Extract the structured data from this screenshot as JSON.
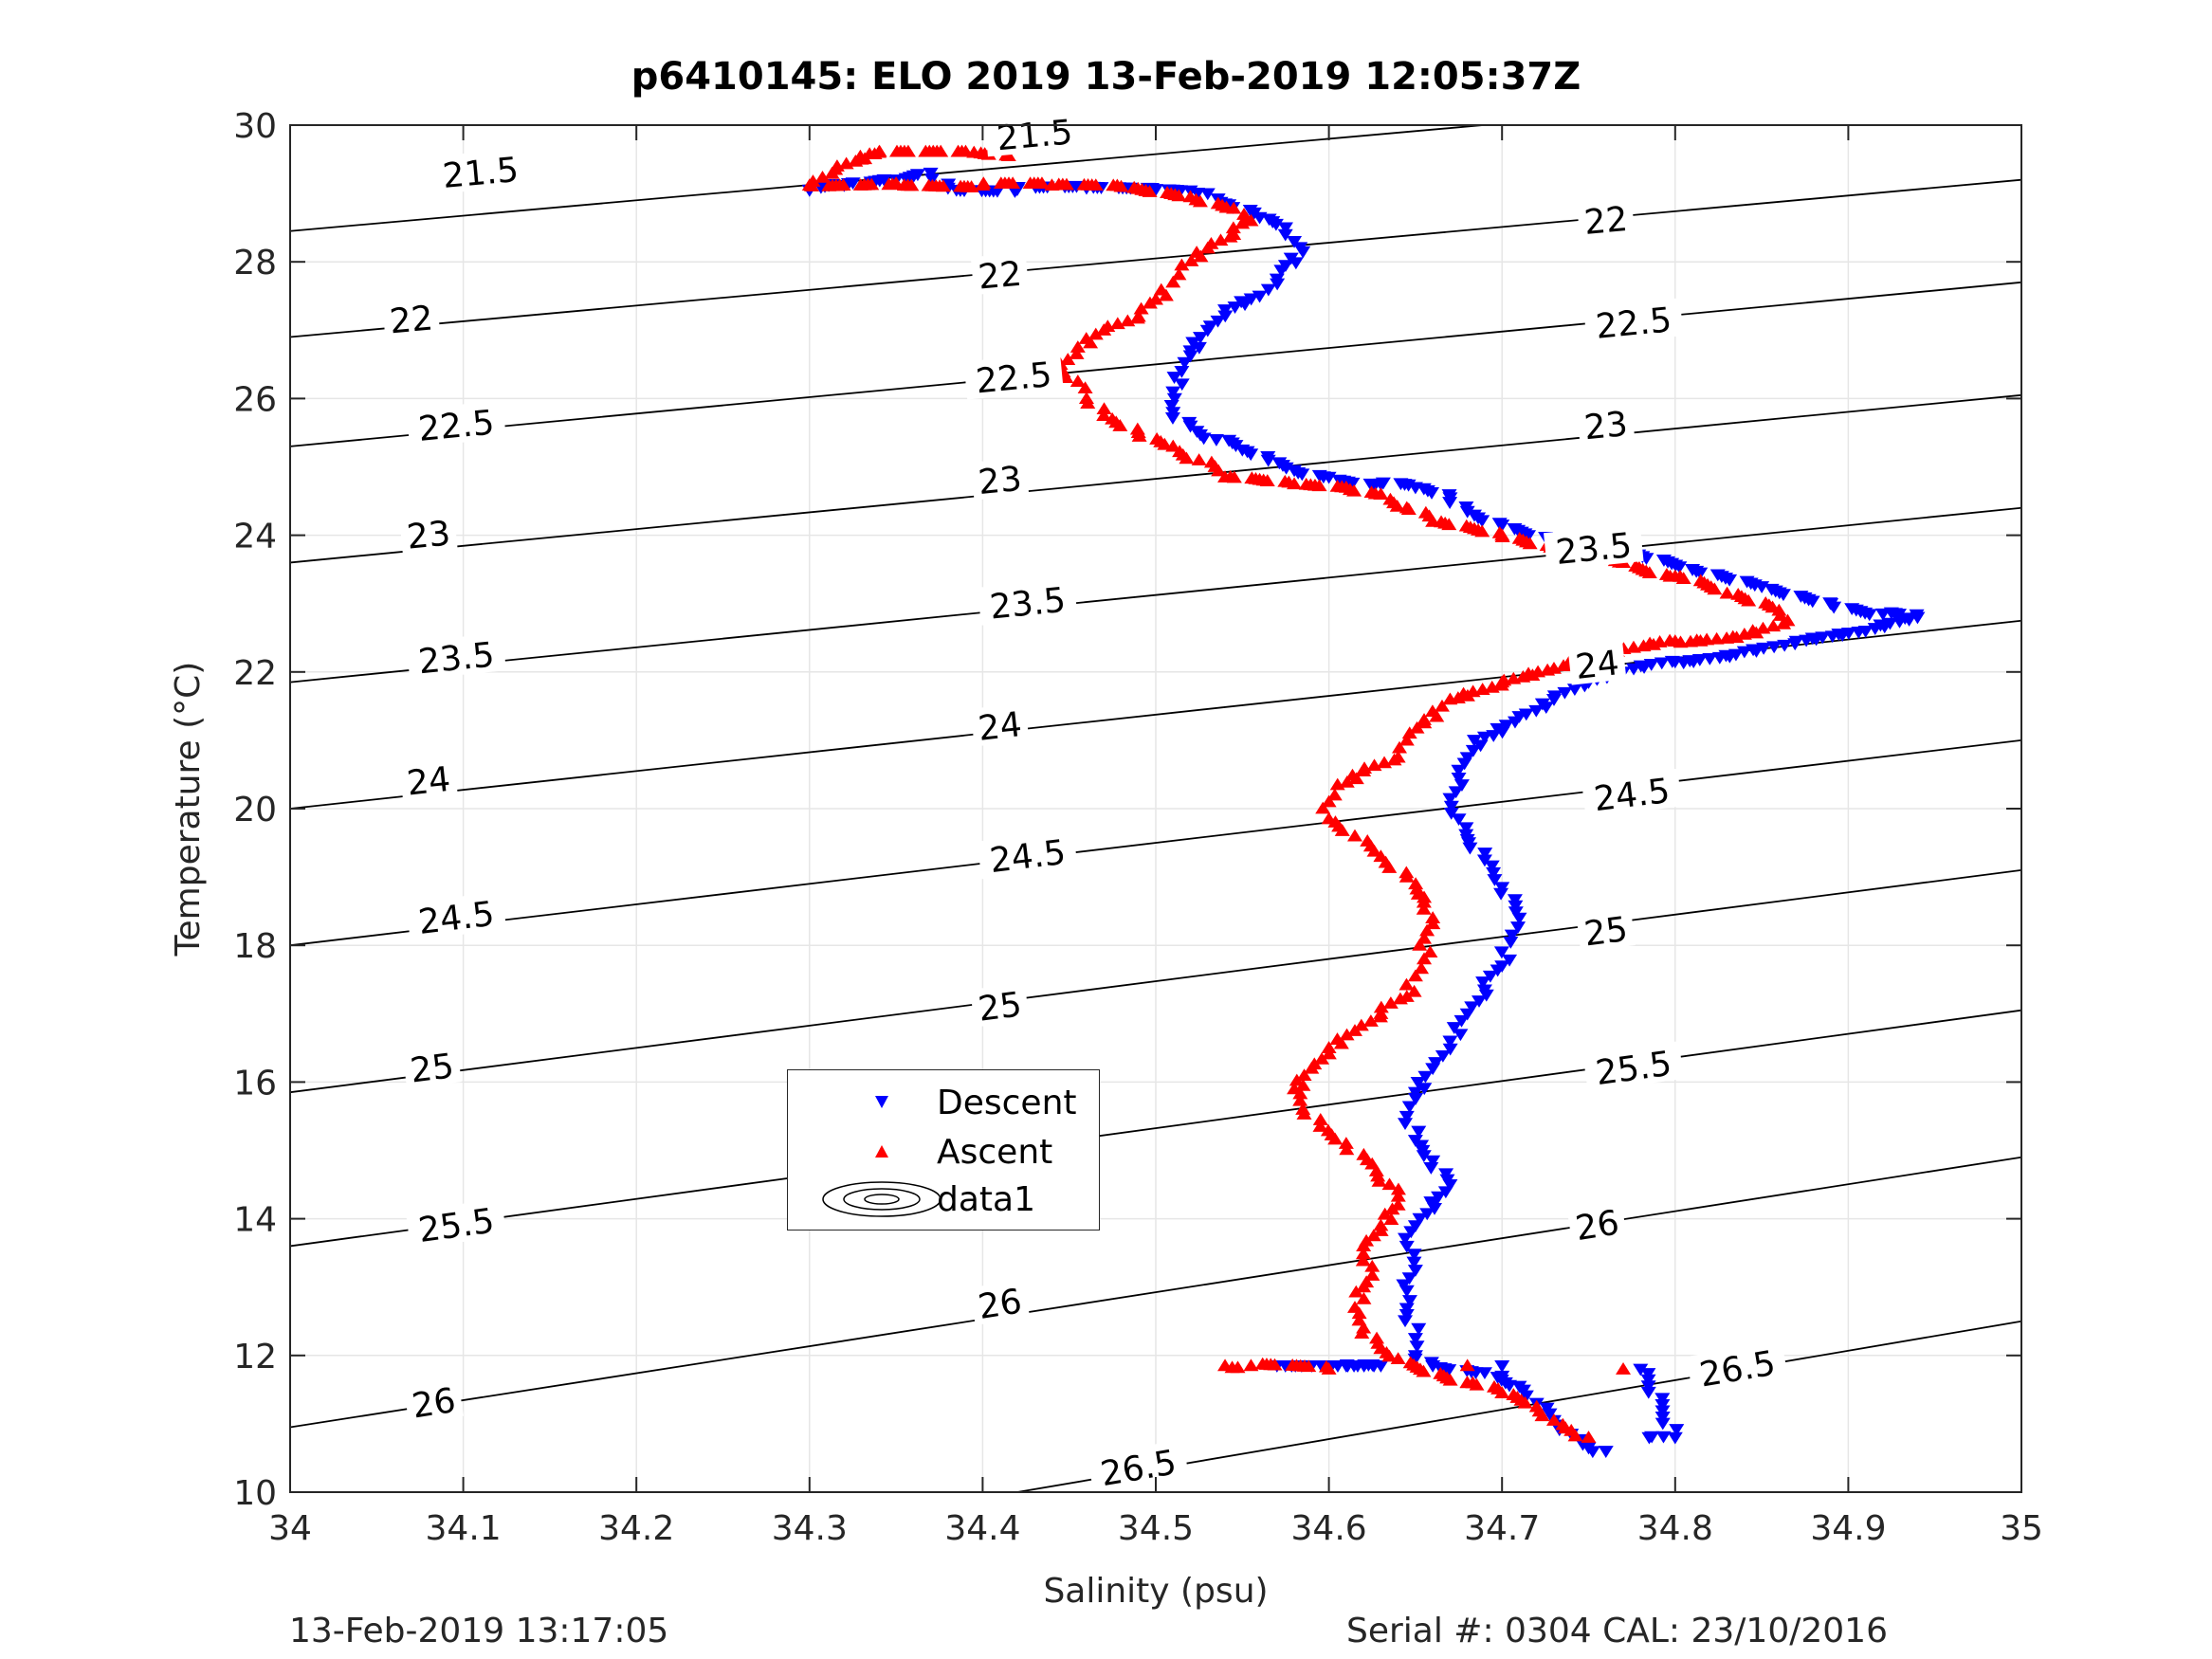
{
  "title": "p6410145: ELO 2019 13-Feb-2019 12:05:37Z",
  "footer": {
    "left": "13-Feb-2019 13:17:05",
    "right": "Serial #: 0304  CAL: 23/10/2016"
  },
  "legend": {
    "descent": "Descent",
    "ascent": "Ascent",
    "data1": "data1"
  },
  "colors": {
    "descent": "#0000ff",
    "ascent": "#ff0000",
    "contour": "#000000",
    "grid": "#e6e6e6",
    "axis": "#262626"
  },
  "chart_data": {
    "type": "scatter",
    "title": "p6410145: ELO 2019 13-Feb-2019 12:05:37Z",
    "xlabel": "Salinity (psu)",
    "ylabel": "Temperature (°C)",
    "xlim": [
      34,
      35
    ],
    "ylim": [
      10,
      30
    ],
    "xticks": [
      34,
      34.1,
      34.2,
      34.3,
      34.4,
      34.5,
      34.6,
      34.7,
      34.8,
      34.9,
      35
    ],
    "xtick_labels": [
      "34",
      "34.1",
      "34.2",
      "34.3",
      "34.4",
      "34.5",
      "34.6",
      "34.7",
      "34.8",
      "34.9",
      "35"
    ],
    "yticks": [
      10,
      12,
      14,
      16,
      18,
      20,
      22,
      24,
      26,
      28,
      30
    ],
    "ytick_labels": [
      "10",
      "12",
      "14",
      "16",
      "18",
      "20",
      "22",
      "24",
      "26",
      "28",
      "30"
    ],
    "grid": true,
    "legend_position": "inside-lower-left",
    "contours": [
      {
        "level": "21.5",
        "points": [
          [
            34,
            28.45
          ],
          [
            35,
            30.7
          ]
        ],
        "labels": [
          [
            34.11,
            29.3
          ],
          [
            34.43,
            29.85
          ]
        ]
      },
      {
        "level": "22",
        "points": [
          [
            34,
            26.9
          ],
          [
            35,
            29.2
          ]
        ],
        "labels": [
          [
            34.07,
            27.15
          ],
          [
            34.41,
            27.8
          ],
          [
            34.76,
            28.6
          ]
        ]
      },
      {
        "level": "22.5",
        "points": [
          [
            34,
            25.3
          ],
          [
            35,
            27.7
          ]
        ],
        "labels": [
          [
            34.096,
            25.6
          ],
          [
            34.418,
            26.3
          ],
          [
            34.776,
            27.1
          ]
        ]
      },
      {
        "level": "23",
        "points": [
          [
            34,
            23.6
          ],
          [
            35,
            26.05
          ]
        ],
        "labels": [
          [
            34.08,
            24.0
          ],
          [
            34.41,
            24.8
          ],
          [
            34.76,
            25.6
          ]
        ]
      },
      {
        "level": "23.5",
        "points": [
          [
            34,
            21.85
          ],
          [
            35,
            24.4
          ]
        ],
        "labels": [
          [
            34.096,
            22.2
          ],
          [
            34.426,
            23.0
          ],
          [
            34.753,
            23.8
          ]
        ]
      },
      {
        "level": "24",
        "points": [
          [
            34,
            20.0
          ],
          [
            35,
            22.75
          ]
        ],
        "labels": [
          [
            34.08,
            20.4
          ],
          [
            34.41,
            21.2
          ],
          [
            34.755,
            22.1
          ]
        ]
      },
      {
        "level": "24.5",
        "points": [
          [
            34,
            18.0
          ],
          [
            35,
            21.0
          ]
        ],
        "labels": [
          [
            34.096,
            18.4
          ],
          [
            34.426,
            19.3
          ],
          [
            34.775,
            20.2
          ]
        ]
      },
      {
        "level": "25",
        "points": [
          [
            34,
            15.85
          ],
          [
            35,
            19.1
          ]
        ],
        "labels": [
          [
            34.082,
            16.2
          ],
          [
            34.41,
            17.1
          ],
          [
            34.76,
            18.2
          ]
        ]
      },
      {
        "level": "25.5",
        "points": [
          [
            34,
            13.6
          ],
          [
            35,
            17.05
          ]
        ],
        "labels": [
          [
            34.096,
            13.9
          ],
          [
            34.425,
            15.0
          ],
          [
            34.776,
            16.2
          ]
        ]
      },
      {
        "level": "26",
        "points": [
          [
            34,
            10.95
          ],
          [
            35,
            14.9
          ]
        ],
        "labels": [
          [
            34.083,
            11.3
          ],
          [
            34.41,
            12.75
          ],
          [
            34.755,
            13.9
          ]
        ]
      },
      {
        "level": "26.5",
        "points": [
          [
            34.42,
            10.0
          ],
          [
            35,
            12.5
          ]
        ],
        "labels": [
          [
            34.49,
            10.35
          ],
          [
            34.836,
            11.8
          ]
        ]
      }
    ],
    "series": [
      {
        "name": "Descent",
        "marker": "triangle-down",
        "color": "#0000ff",
        "points": [
          [
            34.3,
            29.05
          ],
          [
            34.32,
            29.12
          ],
          [
            34.35,
            29.2
          ],
          [
            34.37,
            29.3
          ],
          [
            34.38,
            29.08
          ],
          [
            34.42,
            29.06
          ],
          [
            34.46,
            29.08
          ],
          [
            34.5,
            29.06
          ],
          [
            34.52,
            29.04
          ],
          [
            34.53,
            29.0
          ],
          [
            34.54,
            28.85
          ],
          [
            34.56,
            28.65
          ],
          [
            34.575,
            28.5
          ],
          [
            34.58,
            28.3
          ],
          [
            34.585,
            28.15
          ],
          [
            34.575,
            27.95
          ],
          [
            34.57,
            27.75
          ],
          [
            34.56,
            27.5
          ],
          [
            34.54,
            27.3
          ],
          [
            34.53,
            27.0
          ],
          [
            34.52,
            26.7
          ],
          [
            34.515,
            26.4
          ],
          [
            34.51,
            26.1
          ],
          [
            34.51,
            25.8
          ],
          [
            34.52,
            25.6
          ],
          [
            34.535,
            25.4
          ],
          [
            34.55,
            25.25
          ],
          [
            34.565,
            25.1
          ],
          [
            34.58,
            24.95
          ],
          [
            34.6,
            24.85
          ],
          [
            34.63,
            24.75
          ],
          [
            34.65,
            24.7
          ],
          [
            34.67,
            24.55
          ],
          [
            34.68,
            24.35
          ],
          [
            34.7,
            24.15
          ],
          [
            34.73,
            23.95
          ],
          [
            34.77,
            23.75
          ],
          [
            34.81,
            23.5
          ],
          [
            34.85,
            23.25
          ],
          [
            34.89,
            23.0
          ],
          [
            34.92,
            22.85
          ],
          [
            34.94,
            22.8
          ],
          [
            34.91,
            22.6
          ],
          [
            34.87,
            22.45
          ],
          [
            34.84,
            22.3
          ],
          [
            34.8,
            22.15
          ],
          [
            34.77,
            22.0
          ],
          [
            34.75,
            21.85
          ],
          [
            34.73,
            21.6
          ],
          [
            34.71,
            21.35
          ],
          [
            34.69,
            21.05
          ],
          [
            34.68,
            20.75
          ],
          [
            34.675,
            20.45
          ],
          [
            34.67,
            20.15
          ],
          [
            34.675,
            19.85
          ],
          [
            34.68,
            19.55
          ],
          [
            34.69,
            19.25
          ],
          [
            34.7,
            18.85
          ],
          [
            34.71,
            18.4
          ],
          [
            34.705,
            18.05
          ],
          [
            34.7,
            17.7
          ],
          [
            34.69,
            17.35
          ],
          [
            34.68,
            17.0
          ],
          [
            34.67,
            16.6
          ],
          [
            34.66,
            16.2
          ],
          [
            34.65,
            15.85
          ],
          [
            34.645,
            15.5
          ],
          [
            34.65,
            15.15
          ],
          [
            34.66,
            14.85
          ],
          [
            34.67,
            14.5
          ],
          [
            34.66,
            14.2
          ],
          [
            34.65,
            13.9
          ],
          [
            34.645,
            13.6
          ],
          [
            34.65,
            13.25
          ],
          [
            34.645,
            12.95
          ],
          [
            34.645,
            12.6
          ],
          [
            34.65,
            12.25
          ],
          [
            34.65,
            12.0
          ],
          [
            34.66,
            11.85
          ],
          [
            34.69,
            11.75
          ],
          [
            34.71,
            11.55
          ],
          [
            34.72,
            11.3
          ],
          [
            34.73,
            11.05
          ],
          [
            34.74,
            10.85
          ],
          [
            34.75,
            10.65
          ],
          [
            34.76,
            10.6
          ],
          [
            34.61,
            11.85
          ],
          [
            34.63,
            11.85
          ],
          [
            34.57,
            11.85
          ],
          [
            34.7,
            11.85
          ],
          [
            34.78,
            11.8
          ],
          [
            34.8,
            10.8
          ],
          [
            34.785,
            10.8
          ],
          [
            34.7,
            11.7
          ]
        ]
      },
      {
        "name": "Ascent",
        "marker": "triangle-up",
        "color": "#ff0000",
        "points": [
          [
            34.33,
            29.5
          ],
          [
            34.34,
            29.6
          ],
          [
            34.315,
            29.35
          ],
          [
            34.3,
            29.12
          ],
          [
            34.35,
            29.15
          ],
          [
            34.4,
            29.12
          ],
          [
            34.44,
            29.12
          ],
          [
            34.48,
            29.1
          ],
          [
            34.52,
            28.95
          ],
          [
            34.545,
            28.78
          ],
          [
            34.555,
            28.6
          ],
          [
            34.545,
            28.4
          ],
          [
            34.53,
            28.2
          ],
          [
            34.515,
            27.95
          ],
          [
            34.51,
            27.7
          ],
          [
            34.5,
            27.45
          ],
          [
            34.49,
            27.2
          ],
          [
            34.47,
            27.0
          ],
          [
            34.455,
            26.75
          ],
          [
            34.445,
            26.5
          ],
          [
            34.455,
            26.25
          ],
          [
            34.46,
            26.0
          ],
          [
            34.47,
            25.75
          ],
          [
            34.49,
            25.5
          ],
          [
            34.51,
            25.3
          ],
          [
            34.525,
            25.1
          ],
          [
            34.54,
            24.85
          ],
          [
            34.58,
            24.75
          ],
          [
            34.61,
            24.7
          ],
          [
            34.63,
            24.6
          ],
          [
            34.645,
            24.4
          ],
          [
            34.66,
            24.2
          ],
          [
            34.7,
            24.0
          ],
          [
            34.73,
            23.8
          ],
          [
            34.77,
            23.6
          ],
          [
            34.8,
            23.4
          ],
          [
            34.83,
            23.15
          ],
          [
            34.86,
            22.9
          ],
          [
            34.865,
            22.75
          ],
          [
            34.84,
            22.55
          ],
          [
            34.8,
            22.45
          ],
          [
            34.76,
            22.25
          ],
          [
            34.73,
            22.05
          ],
          [
            34.7,
            21.85
          ],
          [
            34.67,
            21.6
          ],
          [
            34.655,
            21.3
          ],
          [
            34.645,
            21.0
          ],
          [
            34.64,
            20.75
          ],
          [
            34.62,
            20.55
          ],
          [
            34.605,
            20.35
          ],
          [
            34.6,
            20.1
          ],
          [
            34.6,
            19.85
          ],
          [
            34.615,
            19.6
          ],
          [
            34.63,
            19.3
          ],
          [
            34.645,
            19.0
          ],
          [
            34.655,
            18.7
          ],
          [
            34.66,
            18.4
          ],
          [
            34.655,
            18.1
          ],
          [
            34.655,
            17.8
          ],
          [
            34.65,
            17.55
          ],
          [
            34.645,
            17.25
          ],
          [
            34.63,
            17.0
          ],
          [
            34.615,
            16.75
          ],
          [
            34.6,
            16.5
          ],
          [
            34.59,
            16.2
          ],
          [
            34.58,
            15.9
          ],
          [
            34.585,
            15.6
          ],
          [
            34.595,
            15.35
          ],
          [
            34.61,
            15.1
          ],
          [
            34.625,
            14.8
          ],
          [
            34.635,
            14.5
          ],
          [
            34.64,
            14.2
          ],
          [
            34.63,
            13.9
          ],
          [
            34.62,
            13.6
          ],
          [
            34.625,
            13.3
          ],
          [
            34.62,
            13.0
          ],
          [
            34.615,
            12.7
          ],
          [
            34.62,
            12.4
          ],
          [
            34.63,
            12.1
          ],
          [
            34.64,
            11.95
          ],
          [
            34.68,
            11.6
          ],
          [
            34.7,
            11.45
          ],
          [
            34.72,
            11.25
          ],
          [
            34.73,
            11.05
          ],
          [
            34.74,
            10.9
          ],
          [
            34.75,
            10.8
          ],
          [
            34.34,
            29.6
          ],
          [
            34.395,
            29.6
          ],
          [
            34.415,
            29.55
          ],
          [
            34.54,
            11.85
          ],
          [
            34.555,
            11.85
          ],
          [
            34.6,
            11.8
          ],
          [
            34.77,
            11.8
          ],
          [
            34.86,
            11.75
          ],
          [
            34.82,
            11.8
          ],
          [
            34.68,
            11.85
          ]
        ]
      }
    ]
  }
}
